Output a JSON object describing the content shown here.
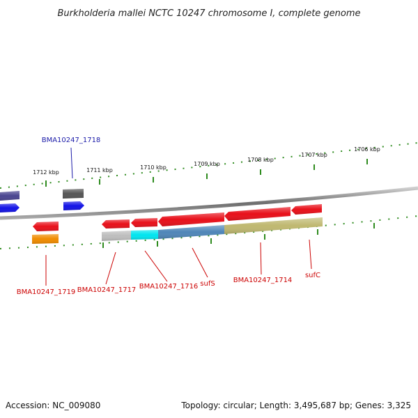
{
  "title": "Burkholderia mallei NCTC 10247 chromosome I, complete genome",
  "footer": {
    "accession": "Accession: NC_009080",
    "topology": "Topology: circular; Length: 3,495,687 bp; Genes: 3,325"
  },
  "ruler_labels": [
    "1712 kbp",
    "1711 kbp",
    "1710 kbp",
    "1709 kbp",
    "1708 kbp",
    "1707 kbp",
    "1706 kbp"
  ],
  "gene_labels": {
    "g1718": "BMA10247_1718",
    "g1719": "BMA10247_1719",
    "g1717": "BMA10247_1717",
    "g1716": "BMA10247_1716",
    "sufS": "sufS",
    "g1714": "BMA10247_1714",
    "sufC": "sufC"
  },
  "colors": {
    "red": "#e8101a",
    "blue": "#1414e6",
    "navy": "#4a4590",
    "dark_gray": "#555555",
    "orange": "#f08c00",
    "light_gray": "#bdbdbd",
    "cyan": "#00e5f0",
    "steel_blue": "#4f86b8",
    "khaki": "#bfb870",
    "tick_green": "#2e8b1e",
    "leader_red": "#cc0000",
    "leader_blue": "#1a1aa8"
  }
}
